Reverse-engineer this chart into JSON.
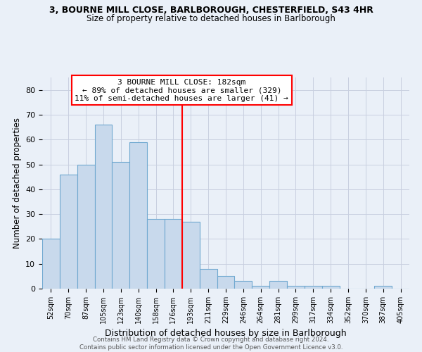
{
  "title_line1": "3, BOURNE MILL CLOSE, BARLBOROUGH, CHESTERFIELD, S43 4HR",
  "title_line2": "Size of property relative to detached houses in Barlborough",
  "xlabel": "Distribution of detached houses by size in Barlborough",
  "ylabel": "Number of detached properties",
  "categories": [
    "52sqm",
    "70sqm",
    "87sqm",
    "105sqm",
    "123sqm",
    "140sqm",
    "158sqm",
    "176sqm",
    "193sqm",
    "211sqm",
    "229sqm",
    "246sqm",
    "264sqm",
    "281sqm",
    "299sqm",
    "317sqm",
    "334sqm",
    "352sqm",
    "370sqm",
    "387sqm",
    "405sqm"
  ],
  "values": [
    20,
    46,
    50,
    66,
    51,
    59,
    28,
    28,
    27,
    8,
    5,
    3,
    1,
    3,
    1,
    1,
    1,
    0,
    0,
    1,
    0
  ],
  "bar_color": "#c8d9ec",
  "bar_edge_color": "#6fa8d0",
  "grid_color": "#c8cfe0",
  "background_color": "#eaf0f8",
  "vline_x": 7.5,
  "vline_color": "red",
  "annotation_text": "3 BOURNE MILL CLOSE: 182sqm\n← 89% of detached houses are smaller (329)\n11% of semi-detached houses are larger (41) →",
  "annotation_box_color": "red",
  "annotation_text_color": "black",
  "footer_line1": "Contains HM Land Registry data © Crown copyright and database right 2024.",
  "footer_line2": "Contains public sector information licensed under the Open Government Licence v3.0.",
  "ylim": [
    0,
    85
  ],
  "yticks": [
    0,
    10,
    20,
    30,
    40,
    50,
    60,
    70,
    80
  ]
}
